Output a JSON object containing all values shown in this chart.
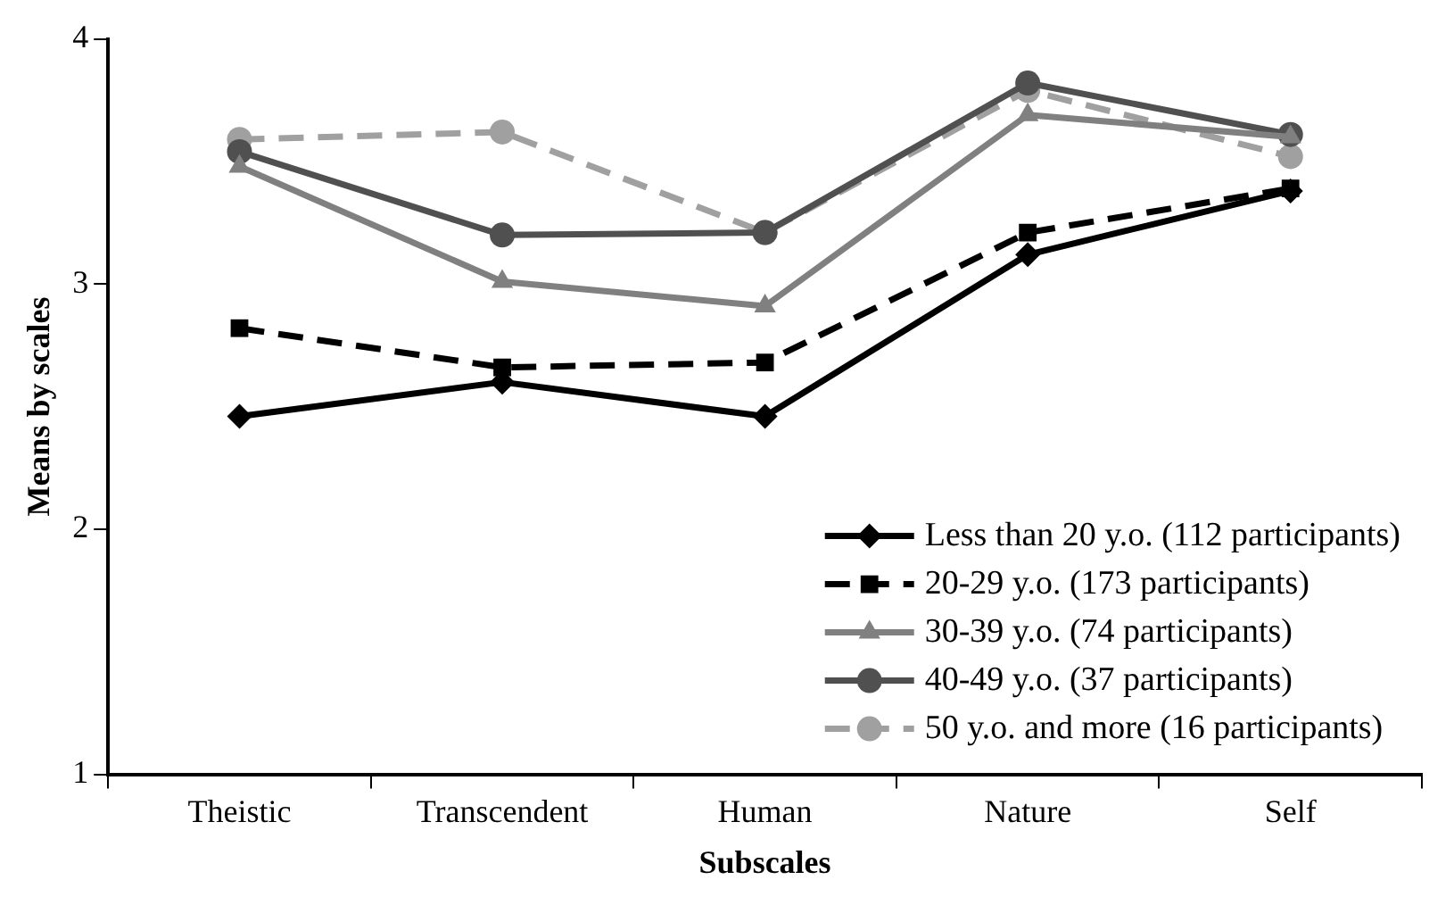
{
  "chart_data": {
    "type": "line",
    "xlabel": "Subscales",
    "ylabel": "Means by scales",
    "categories": [
      "Theistic",
      "Transcendent",
      "Human",
      "Nature",
      "Self"
    ],
    "ylim": [
      1,
      4
    ],
    "yticks": [
      1,
      2,
      3,
      4
    ],
    "grid": false,
    "legend": "bottom right",
    "series": [
      {
        "name": "Less than 20 y.o. (112 participants)",
        "color": "#000000",
        "marker": "diamond",
        "line_style": "solid",
        "values": [
          2.46,
          2.6,
          2.46,
          3.12,
          3.38
        ]
      },
      {
        "name": "20-29 y.o. (173 participants)",
        "color": "#000000",
        "marker": "square",
        "line_style": "dashed",
        "values": [
          2.82,
          2.66,
          2.68,
          3.21,
          3.39
        ]
      },
      {
        "name": "30-39 y.o. (74 participants)",
        "color": "#808080",
        "marker": "triangle",
        "line_style": "solid",
        "values": [
          3.48,
          3.01,
          2.91,
          3.69,
          3.6
        ]
      },
      {
        "name": "40-49 y.o. (37 participants)",
        "color": "#505050",
        "marker": "circle",
        "line_style": "solid",
        "values": [
          3.54,
          3.2,
          3.21,
          3.82,
          3.61
        ]
      },
      {
        "name": "50 y.o. and more (16 participants)",
        "color": "#a0a0a0",
        "marker": "circle",
        "line_style": "dashed",
        "values": [
          3.59,
          3.62,
          3.21,
          3.79,
          3.52
        ]
      }
    ]
  }
}
